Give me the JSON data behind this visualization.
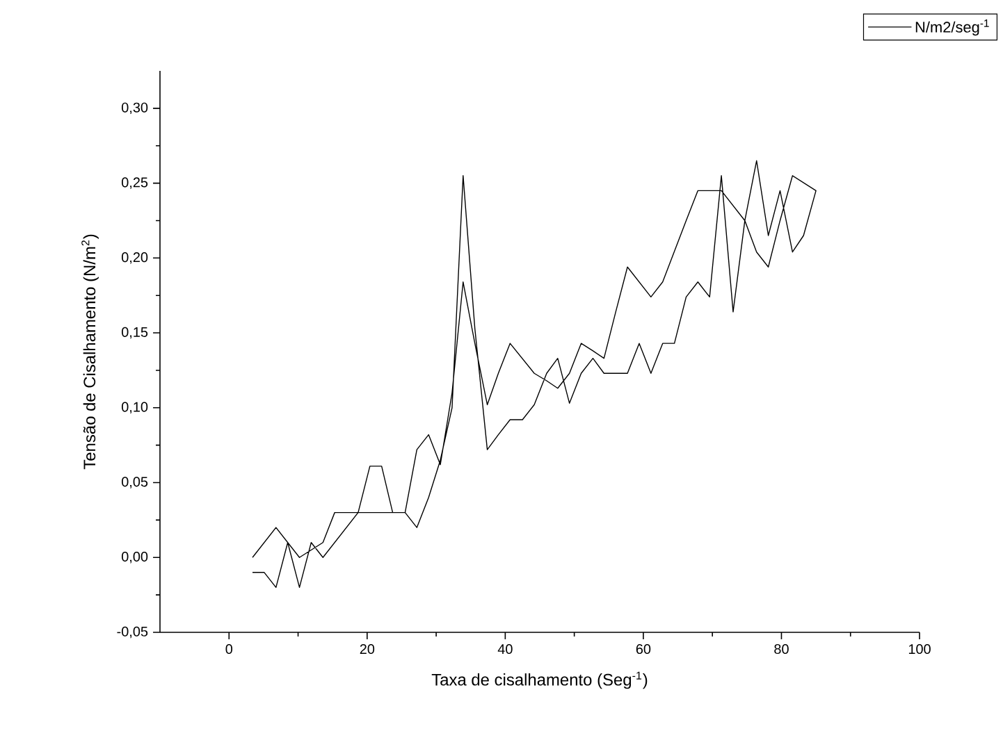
{
  "chart_data": {
    "type": "line",
    "xlabel": "Taxa de cisalhamento (Seg$^{-1}$)",
    "ylabel": "Tensão de Cisalhamento (N/m$^{2}$)",
    "xlim": [
      -10,
      100
    ],
    "xticks": [
      0,
      20,
      40,
      60,
      80,
      100
    ],
    "ylim": [
      -0.05,
      0.325
    ],
    "yticks": [
      {
        "value": -0.05,
        "label": "-0,05"
      },
      {
        "value": 0,
        "label": "0,00"
      },
      {
        "value": 0.05,
        "label": "0,05"
      },
      {
        "value": 0.1,
        "label": "0,10"
      },
      {
        "value": 0.15,
        "label": "0,15"
      },
      {
        "value": 0.2,
        "label": "0,20"
      },
      {
        "value": 0.25,
        "label": "0,25"
      },
      {
        "value": 0.3,
        "label": "0,30"
      }
    ],
    "legend": "top right",
    "grid": false,
    "marker": "none",
    "line_style": "solid",
    "series": [
      {
        "name": "N/m2/seg$^{-1}$",
        "color": "#000000",
        "x": [
          3.4,
          5.1,
          6.8,
          8.5,
          10.2,
          11.9,
          13.6,
          17.0,
          18.7,
          25.5,
          27.2,
          28.9,
          30.6,
          32.3,
          33.9,
          35.6,
          37.4,
          39.0,
          40.7,
          42.5,
          44.2,
          46.0,
          47.6,
          49.3,
          51.0,
          52.7,
          54.3,
          57.7,
          59.4,
          61.1,
          62.8,
          64.5,
          66.2,
          67.9,
          69.6,
          71.3,
          73.0,
          74.7,
          76.4,
          78.1,
          79.8,
          81.6,
          83.2,
          85.0,
          81.6,
          79.8,
          78.1,
          76.4,
          74.7,
          71.3,
          67.9,
          66.2,
          62.8,
          61.1,
          57.7,
          56.0,
          54.3,
          52.7,
          51.0,
          49.3,
          47.6,
          46.0,
          44.2,
          40.7,
          39.0,
          37.4,
          35.6,
          33.9,
          32.3,
          30.6,
          28.9,
          27.2,
          25.5,
          23.7,
          22.1,
          20.4,
          18.7,
          15.3,
          13.6,
          10.2,
          8.5,
          6.8,
          3.4
        ],
        "values": [
          -0.01,
          -0.01,
          -0.02,
          0.01,
          -0.02,
          0.01,
          0.0,
          0.02,
          0.03,
          0.03,
          0.02,
          0.04,
          0.065,
          0.1,
          0.255,
          0.153,
          0.072,
          0.082,
          0.092,
          0.092,
          0.102,
          0.123,
          0.133,
          0.103,
          0.123,
          0.133,
          0.123,
          0.123,
          0.143,
          0.123,
          0.143,
          0.143,
          0.174,
          0.184,
          0.174,
          0.255,
          0.164,
          0.225,
          0.265,
          0.215,
          0.245,
          0.204,
          0.215,
          0.245,
          0.255,
          0.225,
          0.194,
          0.204,
          0.225,
          0.245,
          0.245,
          0.225,
          0.184,
          0.174,
          0.194,
          0.164,
          0.133,
          0.138,
          0.143,
          0.123,
          0.113,
          0.118,
          0.123,
          0.143,
          0.123,
          0.102,
          0.143,
          0.184,
          0.11,
          0.062,
          0.082,
          0.072,
          0.03,
          0.03,
          0.061,
          0.061,
          0.03,
          0.03,
          0.01,
          0.0,
          0.01,
          0.02,
          0.0
        ]
      }
    ]
  }
}
